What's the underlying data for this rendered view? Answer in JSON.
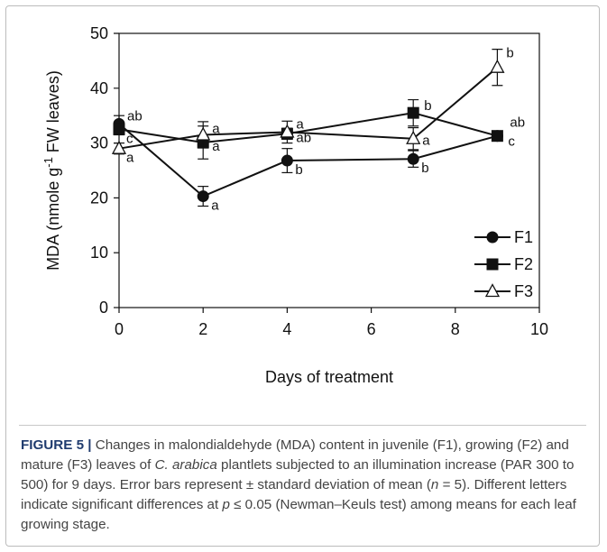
{
  "chart_data": {
    "type": "line",
    "xlabel": "Days of treatment",
    "ylabel_pre": "MDA (nmole g",
    "ylabel_sup": "-1",
    "ylabel_post": " FW leaves)",
    "xlim": [
      0,
      10
    ],
    "ylim": [
      0,
      50
    ],
    "xticks": [
      "0",
      "2",
      "4",
      "6",
      "8",
      "10"
    ],
    "yticks": [
      "0",
      "10",
      "20",
      "30",
      "40",
      "50"
    ],
    "grid": false,
    "legend_position": "bottom-right",
    "series": [
      {
        "name": "F1",
        "marker": "circle",
        "x": [
          0,
          2,
          4,
          7,
          9
        ],
        "y": [
          33.5,
          20.3,
          26.8,
          27.1,
          31.3
        ],
        "err": [
          1.5,
          1.8,
          2.2,
          1.5,
          0.5
        ],
        "letters": [
          "ab",
          "a",
          "b",
          "b",
          "c"
        ]
      },
      {
        "name": "F2",
        "marker": "square",
        "x": [
          0,
          2,
          4,
          7,
          9
        ],
        "y": [
          32.5,
          30.1,
          31.7,
          35.5,
          31.3
        ],
        "err": [
          1.0,
          3.0,
          1.0,
          2.4,
          0.5
        ],
        "letters": [
          "c",
          "a",
          "ab",
          "b",
          "ab"
        ]
      },
      {
        "name": "F3",
        "marker": "triangle",
        "x": [
          0,
          2,
          4,
          7,
          9
        ],
        "y": [
          29.0,
          31.5,
          32.0,
          30.8,
          43.8
        ],
        "err": [
          1.0,
          2.4,
          2.0,
          2.0,
          3.3
        ],
        "letters": [
          "a",
          "a",
          "a",
          "a",
          "b"
        ]
      }
    ]
  },
  "caption": {
    "lead": "FIGURE 5 |",
    "part1": " Changes in malondialdehyde (MDA) content in juvenile (F1), growing (F2) and mature (F3) leaves of ",
    "species": "C. arabica",
    "part2": " plantlets subjected to an illumination increase (PAR 300 to 500) for 9 days. Error bars represent ± standard deviation of mean (",
    "n_var": "n",
    "part3": " = 5). Different letters indicate significant differences at ",
    "p_var": "p",
    "part4": " ≤ 0.05 (Newman–Keuls test) among means for each leaf growing stage."
  }
}
